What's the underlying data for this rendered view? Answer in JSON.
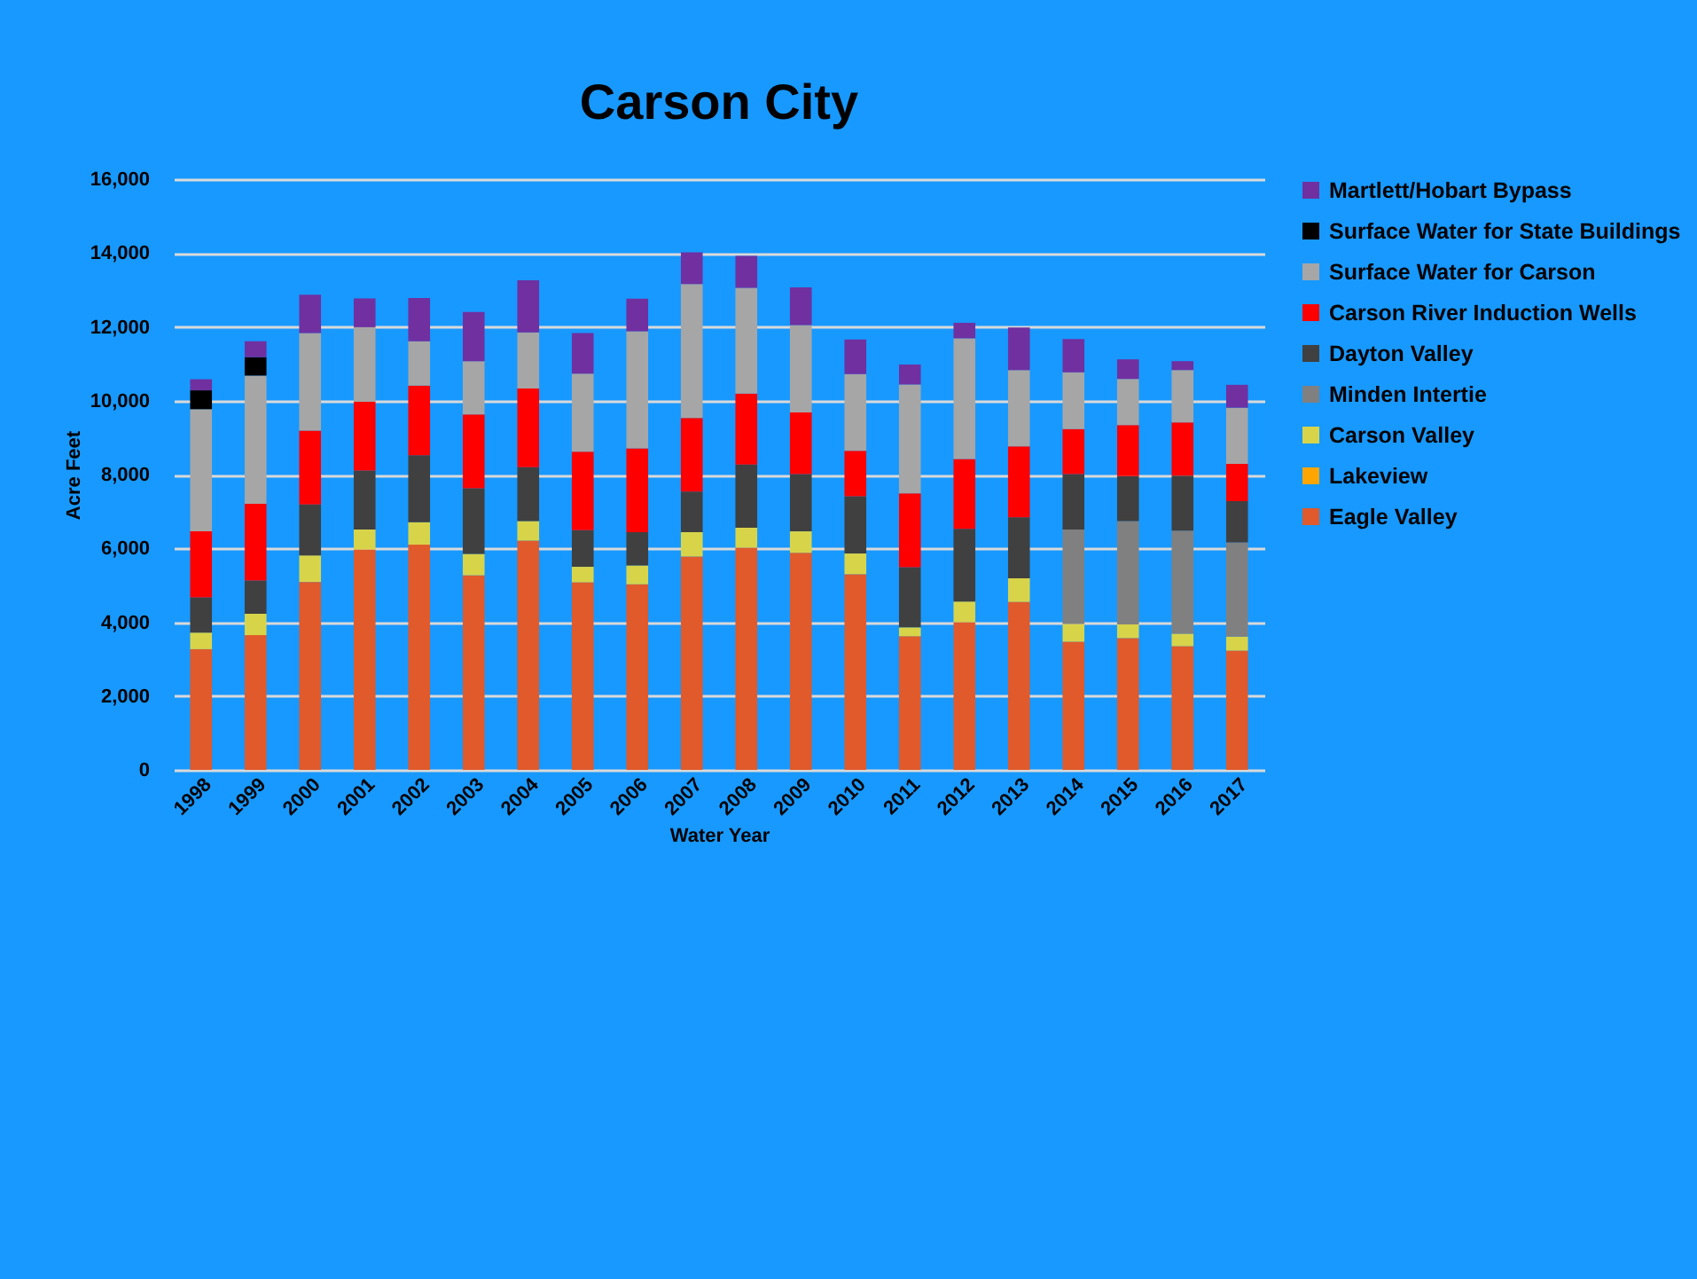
{
  "chart_data": {
    "type": "bar",
    "title": "Carson City",
    "xlabel": "Water Year",
    "ylabel": "Acre Feet",
    "categories": [
      "1998",
      "1999",
      "2000",
      "2001",
      "2002",
      "2003",
      "2004",
      "2005",
      "2006",
      "2007",
      "2008",
      "2009",
      "2010",
      "2011",
      "2012",
      "2013",
      "2014",
      "2015",
      "2016",
      "2017"
    ],
    "stacked": true,
    "ylim": [
      0,
      16000
    ],
    "yticks": [
      0,
      {
        "value": 2000,
        "label": "2,000"
      },
      {
        "value": 4000,
        "label": "4,000"
      },
      {
        "value": 6000,
        "label": "6,000"
      },
      {
        "value": 8000,
        "label": "8,000"
      },
      {
        "value": 10000,
        "label": "10,000"
      },
      {
        "value": 12000,
        "label": "12,000"
      },
      {
        "value": 14000,
        "label": "14,000"
      },
      {
        "value": 16000,
        "label": "16,000"
      }
    ],
    "grid": "y",
    "legend": "right",
    "series": [
      {
        "name": "Eagle Valley",
        "color": "#e05a2b",
        "values": [
          3270,
          3650,
          5090,
          5970,
          6100,
          5270,
          6210,
          5080,
          5030,
          5780,
          6020,
          5880,
          5300,
          3620,
          4000,
          4550,
          3470,
          3570,
          3350,
          3230
        ]
      },
      {
        "name": "Lakeview",
        "color": "#ffa500",
        "values": [
          0,
          0,
          0,
          0,
          0,
          0,
          0,
          0,
          0,
          0,
          0,
          0,
          0,
          0,
          0,
          0,
          0,
          0,
          0,
          0
        ]
      },
      {
        "name": "Carson Valley",
        "color": "#d8d44a",
        "values": [
          450,
          580,
          720,
          540,
          610,
          580,
          530,
          420,
          510,
          660,
          540,
          580,
          560,
          240,
          560,
          640,
          480,
          370,
          340,
          380
        ]
      },
      {
        "name": "Minden Intertie",
        "color": "#808080",
        "values": [
          0,
          0,
          0,
          0,
          0,
          0,
          0,
          0,
          0,
          0,
          0,
          0,
          0,
          0,
          0,
          0,
          2560,
          2800,
          2790,
          2550
        ]
      },
      {
        "name": "Dayton Valley",
        "color": "#404040",
        "values": [
          950,
          900,
          1380,
          1600,
          1810,
          1780,
          1460,
          990,
          900,
          1100,
          1710,
          1550,
          1550,
          1630,
          1970,
          1650,
          1500,
          1220,
          1490,
          1120
        ]
      },
      {
        "name": "Carson River Induction Wells",
        "color": "#ff0000",
        "values": [
          1790,
          2080,
          2000,
          1860,
          1890,
          2000,
          2130,
          2130,
          2270,
          1990,
          1920,
          1670,
          1230,
          2000,
          1890,
          1920,
          1220,
          1380,
          1440,
          1010
        ]
      },
      {
        "name": "Surface Water for Carson",
        "color": "#a6a6a6",
        "values": [
          3310,
          3470,
          2640,
          2020,
          1200,
          1440,
          1520,
          2110,
          3170,
          3630,
          2870,
          2370,
          2080,
          2950,
          3270,
          2070,
          1540,
          1250,
          1420,
          1520
        ]
      },
      {
        "name": "Surface Water for State Buildings",
        "color": "#000000",
        "values": [
          510,
          500,
          0,
          0,
          0,
          0,
          0,
          0,
          0,
          0,
          0,
          0,
          0,
          0,
          0,
          0,
          0,
          0,
          0,
          0
        ]
      },
      {
        "name": "Martlett/Hobart Bypass",
        "color": "#7030a0",
        "values": [
          300,
          430,
          1040,
          780,
          1170,
          1330,
          1410,
          1100,
          880,
          860,
          860,
          1020,
          940,
          540,
          420,
          1150,
          900,
          530,
          240,
          620
        ]
      }
    ]
  }
}
